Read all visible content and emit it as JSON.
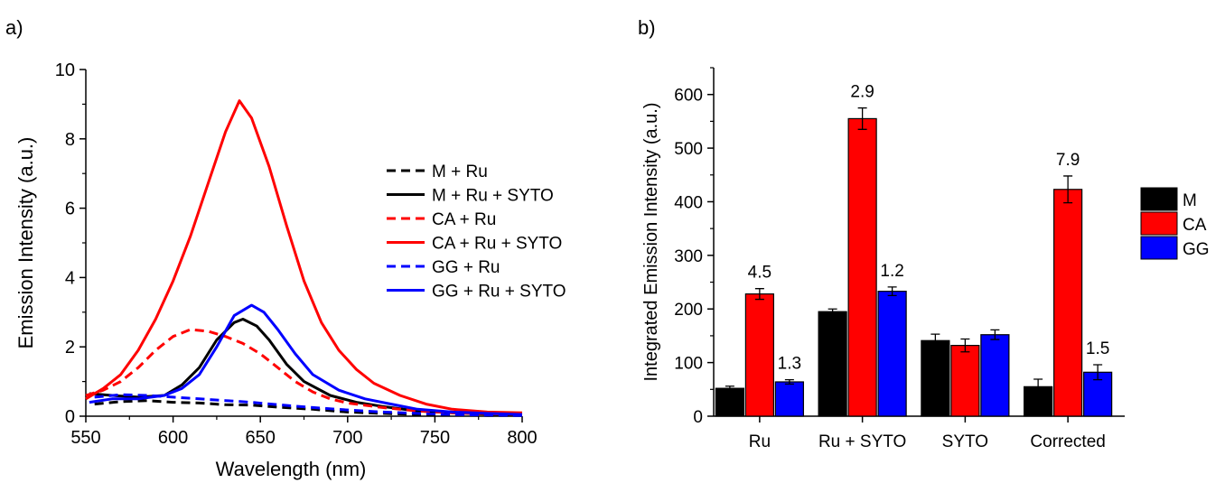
{
  "panels": [
    {
      "label": "a)",
      "chart_data": {
        "type": "line",
        "xlabel": "Wavelength (nm)",
        "ylabel": "Emission Intensity (a.u.)",
        "xlim": [
          550,
          800
        ],
        "ylim": [
          0,
          10
        ],
        "xticks": [
          550,
          600,
          650,
          700,
          750,
          800
        ],
        "yticks": [
          0,
          2,
          4,
          6,
          8,
          10
        ],
        "grid": false,
        "legend_position": "right",
        "series": [
          {
            "name": "M + Ru",
            "color": "#000000",
            "dash": "dashed",
            "points": [
              [
                555,
                0.35
              ],
              [
                570,
                0.42
              ],
              [
                585,
                0.45
              ],
              [
                600,
                0.4
              ],
              [
                615,
                0.38
              ],
              [
                630,
                0.33
              ],
              [
                645,
                0.32
              ],
              [
                660,
                0.26
              ],
              [
                680,
                0.2
              ],
              [
                700,
                0.12
              ],
              [
                720,
                0.08
              ],
              [
                740,
                0.05
              ],
              [
                760,
                0.03
              ],
              [
                780,
                0.02
              ],
              [
                800,
                0.02
              ]
            ]
          },
          {
            "name": "M + Ru + SYTO",
            "color": "#000000",
            "dash": "solid",
            "points": [
              [
                552,
                0.65
              ],
              [
                565,
                0.6
              ],
              [
                580,
                0.55
              ],
              [
                595,
                0.6
              ],
              [
                605,
                0.9
              ],
              [
                615,
                1.4
              ],
              [
                625,
                2.2
              ],
              [
                635,
                2.7
              ],
              [
                640,
                2.8
              ],
              [
                648,
                2.6
              ],
              [
                655,
                2.2
              ],
              [
                665,
                1.5
              ],
              [
                675,
                1.0
              ],
              [
                690,
                0.6
              ],
              [
                705,
                0.4
              ],
              [
                720,
                0.28
              ],
              [
                740,
                0.15
              ],
              [
                760,
                0.1
              ],
              [
                780,
                0.06
              ],
              [
                800,
                0.05
              ]
            ]
          },
          {
            "name": "CA + Ru",
            "color": "#ff0000",
            "dash": "dashed",
            "points": [
              [
                550,
                0.6
              ],
              [
                560,
                0.75
              ],
              [
                570,
                1.0
              ],
              [
                580,
                1.4
              ],
              [
                590,
                1.9
              ],
              [
                600,
                2.3
              ],
              [
                610,
                2.5
              ],
              [
                620,
                2.45
              ],
              [
                630,
                2.3
              ],
              [
                640,
                2.1
              ],
              [
                650,
                1.8
              ],
              [
                660,
                1.4
              ],
              [
                670,
                1.0
              ],
              [
                680,
                0.7
              ],
              [
                690,
                0.5
              ],
              [
                700,
                0.38
              ],
              [
                720,
                0.25
              ],
              [
                740,
                0.15
              ],
              [
                760,
                0.1
              ],
              [
                780,
                0.07
              ],
              [
                800,
                0.05
              ]
            ]
          },
          {
            "name": "CA + Ru + SYTO",
            "color": "#ff0000",
            "dash": "solid",
            "points": [
              [
                550,
                0.5
              ],
              [
                560,
                0.8
              ],
              [
                570,
                1.2
              ],
              [
                580,
                1.9
              ],
              [
                590,
                2.8
              ],
              [
                600,
                3.9
              ],
              [
                610,
                5.2
              ],
              [
                620,
                6.7
              ],
              [
                630,
                8.2
              ],
              [
                638,
                9.1
              ],
              [
                645,
                8.6
              ],
              [
                655,
                7.2
              ],
              [
                665,
                5.5
              ],
              [
                675,
                3.9
              ],
              [
                685,
                2.7
              ],
              [
                695,
                1.9
              ],
              [
                705,
                1.35
              ],
              [
                715,
                0.95
              ],
              [
                730,
                0.6
              ],
              [
                745,
                0.35
              ],
              [
                760,
                0.2
              ],
              [
                780,
                0.12
              ],
              [
                800,
                0.1
              ]
            ]
          },
          {
            "name": "GG + Ru",
            "color": "#0000ff",
            "dash": "dashed",
            "points": [
              [
                555,
                0.55
              ],
              [
                570,
                0.62
              ],
              [
                585,
                0.6
              ],
              [
                600,
                0.55
              ],
              [
                615,
                0.5
              ],
              [
                630,
                0.45
              ],
              [
                645,
                0.4
              ],
              [
                660,
                0.33
              ],
              [
                680,
                0.25
              ],
              [
                700,
                0.18
              ],
              [
                720,
                0.12
              ],
              [
                740,
                0.08
              ],
              [
                760,
                0.05
              ],
              [
                780,
                0.03
              ],
              [
                800,
                0.02
              ]
            ]
          },
          {
            "name": "GG + Ru + SYTO",
            "color": "#0000ff",
            "dash": "solid",
            "points": [
              [
                552,
                0.4
              ],
              [
                565,
                0.5
              ],
              [
                580,
                0.5
              ],
              [
                595,
                0.6
              ],
              [
                605,
                0.8
              ],
              [
                615,
                1.2
              ],
              [
                625,
                2.0
              ],
              [
                635,
                2.9
              ],
              [
                645,
                3.2
              ],
              [
                652,
                3.0
              ],
              [
                660,
                2.5
              ],
              [
                670,
                1.8
              ],
              [
                680,
                1.2
              ],
              [
                695,
                0.75
              ],
              [
                710,
                0.5
              ],
              [
                725,
                0.35
              ],
              [
                740,
                0.2
              ],
              [
                760,
                0.12
              ],
              [
                780,
                0.08
              ],
              [
                800,
                0.05
              ]
            ]
          }
        ]
      }
    },
    {
      "label": "b)",
      "chart_data": {
        "type": "bar",
        "ylabel": "Integrated Emission Intensity (a.u.)",
        "xlabel": "",
        "ylim": [
          0,
          650
        ],
        "yticks": [
          0,
          100,
          200,
          300,
          400,
          500,
          600
        ],
        "grid": false,
        "legend_position": "right",
        "categories": [
          "Ru",
          "Ru + SYTO",
          "SYTO",
          "Corrected"
        ],
        "series": [
          {
            "name": "M",
            "color": "#000000",
            "values": [
              52,
              195,
              141,
              55
            ],
            "errors": [
              4,
              5,
              12,
              14
            ]
          },
          {
            "name": "CA",
            "color": "#ff0000",
            "values": [
              228,
              555,
              132,
              423
            ],
            "errors": [
              10,
              20,
              12,
              25
            ]
          },
          {
            "name": "GG",
            "color": "#0000ff",
            "values": [
              64,
              233,
              152,
              82
            ],
            "errors": [
              4,
              8,
              9,
              14
            ]
          }
        ],
        "annotations": [
          {
            "category": "Ru",
            "series": "CA",
            "text": "4.5"
          },
          {
            "category": "Ru",
            "series": "GG",
            "text": "1.3"
          },
          {
            "category": "Ru + SYTO",
            "series": "CA",
            "text": "2.9"
          },
          {
            "category": "Ru + SYTO",
            "series": "GG",
            "text": "1.2"
          },
          {
            "category": "Corrected",
            "series": "CA",
            "text": "7.9"
          },
          {
            "category": "Corrected",
            "series": "GG",
            "text": "1.5"
          }
        ]
      }
    }
  ]
}
